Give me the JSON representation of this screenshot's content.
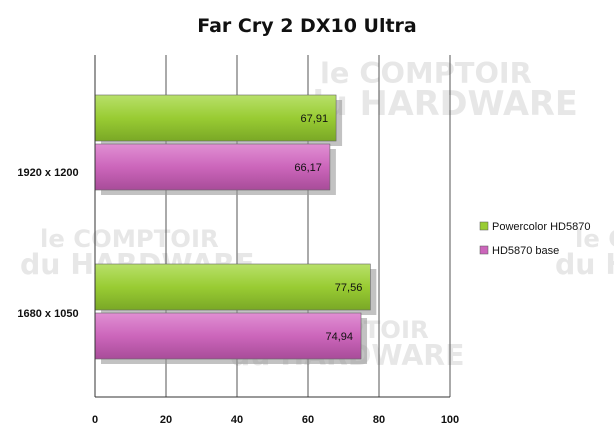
{
  "chart_data": {
    "type": "bar",
    "orientation": "horizontal",
    "title": "Far Cry 2 DX10 Ultra",
    "xlabel": "",
    "ylabel": "",
    "categories": [
      "1920 x 1200",
      "1680 x 1050"
    ],
    "series": [
      {
        "name": "Powercolor HD5870",
        "values": [
          67.91,
          77.56
        ],
        "labels": [
          "67,91",
          "77,56"
        ],
        "color": "#99cc33"
      },
      {
        "name": "HD5870 base",
        "values": [
          66.17,
          74.94
        ],
        "labels": [
          "66,17",
          "74,94"
        ],
        "color": "#cc66bb"
      }
    ],
    "xlim": [
      0,
      100
    ],
    "ticks": [
      0,
      20,
      40,
      60,
      80,
      100
    ],
    "tick_labels": [
      "0",
      "20",
      "40",
      "60",
      "80",
      "100"
    ],
    "grid": true,
    "legend": "right"
  },
  "watermark": {
    "line1": "le COMPTOIR",
    "line2": "du HARDWARE"
  }
}
